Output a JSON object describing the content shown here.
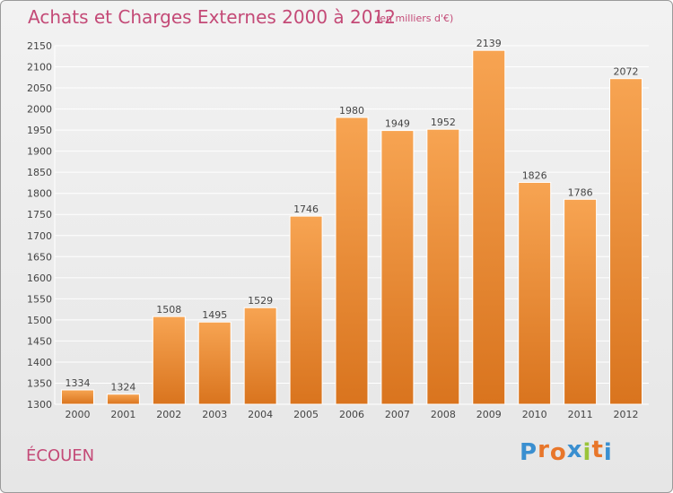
{
  "header": {
    "title": "Achats et Charges Externes 2000 à 2012",
    "subtitle": "(en milliers d'€)"
  },
  "footer": {
    "city": "ÉCOUEN",
    "logo_text": "Proxiti",
    "logo_colors": [
      "#3a8fd0",
      "#e8762a",
      "#e8762a",
      "#3a8fd0",
      "#9ac43a",
      "#e8762a",
      "#3a8fd0"
    ]
  },
  "colors": {
    "title": "#c44a77",
    "bar_top": "#f7a452",
    "bar_bottom": "#d9741e",
    "grid": "#ffffff",
    "axis_text": "#444444"
  },
  "chart_data": {
    "type": "bar",
    "categories": [
      "2000",
      "2001",
      "2002",
      "2003",
      "2004",
      "2005",
      "2006",
      "2007",
      "2008",
      "2009",
      "2010",
      "2011",
      "2012"
    ],
    "values": [
      1334,
      1324,
      1508,
      1495,
      1529,
      1746,
      1980,
      1949,
      1952,
      2139,
      1826,
      1786,
      2072
    ],
    "title": "Achats et Charges Externes 2000 à 2012",
    "ylim": [
      1300,
      2150
    ],
    "yticks": [
      1300,
      1350,
      1400,
      1450,
      1500,
      1550,
      1600,
      1650,
      1700,
      1750,
      1800,
      1850,
      1900,
      1950,
      2000,
      2050,
      2100,
      2150
    ],
    "grid": true,
    "data_labels": true
  }
}
